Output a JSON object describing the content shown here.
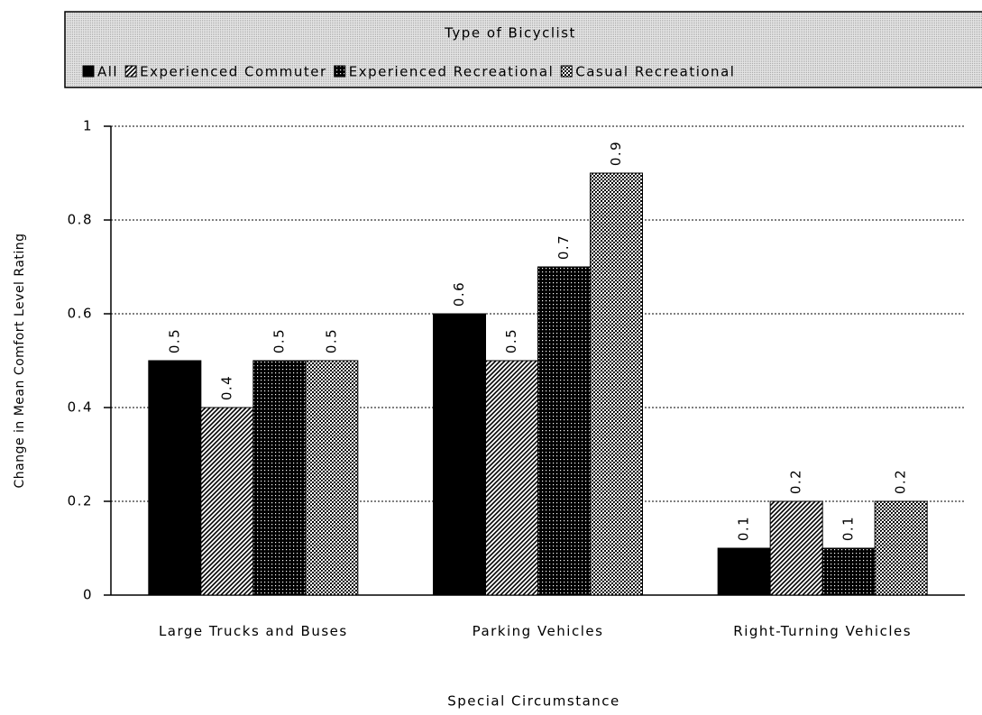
{
  "chart_data": {
    "type": "bar",
    "legend_title": "Type of Bicyclist",
    "y_label": "Change in Mean Comfort Level Rating",
    "x_label": "Special Circumstance",
    "categories": [
      "Large Trucks and Buses",
      "Parking Vehicles",
      "Right-Turning Vehicles"
    ],
    "series": [
      {
        "name": "All",
        "color": "#000000",
        "pattern": "solid",
        "values": [
          0.5,
          0.6,
          0.1
        ]
      },
      {
        "name": "Experienced Commuter",
        "color": "#000000",
        "pattern": "diagonal",
        "values": [
          0.4,
          0.5,
          0.2
        ]
      },
      {
        "name": "Experienced Recreational",
        "color": "#000000",
        "pattern": "dots",
        "values": [
          0.5,
          0.7,
          0.1
        ]
      },
      {
        "name": "Casual Recreational",
        "color": "#000000",
        "pattern": "crosshatch",
        "values": [
          0.5,
          0.9,
          0.2
        ]
      }
    ],
    "ylim": [
      0,
      1
    ],
    "yticks": [
      0,
      0.2,
      0.4,
      0.6,
      0.8,
      1
    ],
    "grid": true,
    "legend": "top"
  }
}
